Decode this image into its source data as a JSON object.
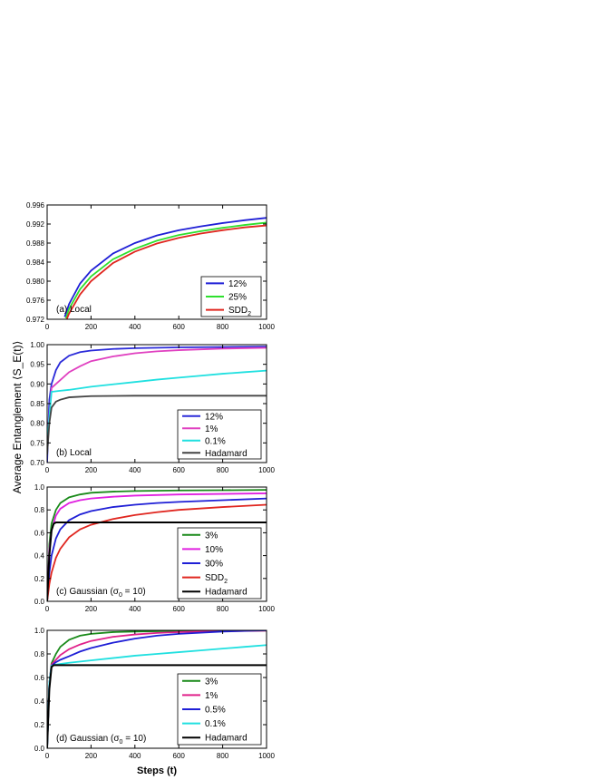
{
  "figure": {
    "ylabel": "Average Entanglement ⟨S_E(t)⟩",
    "xlabel": "Steps (t)"
  },
  "chart_data": [
    {
      "type": "line",
      "annotation": "(a) Local",
      "xlim": [
        0,
        1000
      ],
      "ylim": [
        0.972,
        0.996
      ],
      "yticks": [
        "0.972",
        "0.976",
        "0.980",
        "0.984",
        "0.988",
        "0.992",
        "0.996"
      ],
      "xticks": [
        "0",
        "200",
        "400",
        "600",
        "800",
        "1000"
      ],
      "legend_position": "bottom-right",
      "series": [
        {
          "name": "12%",
          "color": "#1f1fd6",
          "x": [
            80,
            100,
            150,
            200,
            300,
            400,
            500,
            600,
            700,
            800,
            900,
            1000
          ],
          "y": [
            0.9725,
            0.9752,
            0.9795,
            0.9822,
            0.9858,
            0.988,
            0.9896,
            0.9907,
            0.9915,
            0.9922,
            0.9928,
            0.9933
          ]
        },
        {
          "name": "25%",
          "color": "#2ee02e",
          "x": [
            85,
            100,
            150,
            200,
            300,
            400,
            500,
            600,
            700,
            800,
            900,
            1000
          ],
          "y": [
            0.9722,
            0.9742,
            0.9783,
            0.981,
            0.9846,
            0.9868,
            0.9885,
            0.9897,
            0.9905,
            0.9912,
            0.9918,
            0.9923
          ]
        },
        {
          "name": "SDD2",
          "color": "#e0261f",
          "x": [
            90,
            100,
            150,
            200,
            300,
            400,
            500,
            600,
            700,
            800,
            900,
            1000
          ],
          "y": [
            0.9721,
            0.9732,
            0.9772,
            0.98,
            0.9838,
            0.9862,
            0.9879,
            0.9891,
            0.99,
            0.9907,
            0.9913,
            0.9917
          ]
        }
      ]
    },
    {
      "type": "line",
      "annotation": "(b) Local",
      "xlim": [
        0,
        1000
      ],
      "ylim": [
        0.7,
        1.0
      ],
      "yticks": [
        "0.70",
        "0.75",
        "0.80",
        "0.85",
        "0.90",
        "0.95",
        "1.00"
      ],
      "xticks": [
        "0",
        "200",
        "400",
        "600",
        "800",
        "1000"
      ],
      "legend_position": "bottom-right",
      "series": [
        {
          "name": "12%",
          "color": "#2b2bd9",
          "x": [
            0,
            10,
            20,
            40,
            60,
            100,
            150,
            200,
            300,
            400,
            600,
            800,
            1000
          ],
          "y": [
            0.7,
            0.86,
            0.9,
            0.935,
            0.955,
            0.972,
            0.981,
            0.985,
            0.989,
            0.991,
            0.993,
            0.994,
            0.995
          ]
        },
        {
          "name": "1%",
          "color": "#e040c0",
          "x": [
            0,
            20,
            50,
            100,
            150,
            200,
            300,
            400,
            500,
            600,
            800,
            1000
          ],
          "y": [
            0.75,
            0.89,
            0.905,
            0.93,
            0.945,
            0.958,
            0.97,
            0.978,
            0.983,
            0.986,
            0.99,
            0.992
          ]
        },
        {
          "name": "0.1%",
          "color": "#20e0e0",
          "x": [
            0,
            20,
            50,
            100,
            150,
            200,
            300,
            400,
            500,
            600,
            700,
            800,
            900,
            1000
          ],
          "y": [
            0.75,
            0.88,
            0.882,
            0.885,
            0.889,
            0.893,
            0.899,
            0.905,
            0.911,
            0.916,
            0.921,
            0.926,
            0.93,
            0.934
          ]
        },
        {
          "name": "Hadamard",
          "color": "#444444",
          "x": [
            0,
            10,
            20,
            40,
            60,
            100,
            200,
            400,
            600,
            800,
            1000
          ],
          "y": [
            0.72,
            0.8,
            0.84,
            0.855,
            0.86,
            0.866,
            0.869,
            0.87,
            0.87,
            0.87,
            0.87
          ]
        }
      ]
    },
    {
      "type": "line",
      "annotation": "(c) Gaussian (σ0 = 10)",
      "xlim": [
        0,
        1000
      ],
      "ylim": [
        0.0,
        1.0
      ],
      "yticks": [
        "0.0",
        "0.2",
        "0.4",
        "0.6",
        "0.8",
        "1.0"
      ],
      "xticks": [
        "0",
        "200",
        "400",
        "600",
        "800",
        "1000"
      ],
      "legend_position": "bottom-right",
      "series": [
        {
          "name": "3%",
          "color": "#1a8a1a",
          "x": [
            0,
            10,
            20,
            40,
            60,
            100,
            150,
            200,
            300,
            400,
            600,
            800,
            1000
          ],
          "y": [
            0.0,
            0.5,
            0.68,
            0.8,
            0.86,
            0.91,
            0.935,
            0.95,
            0.96,
            0.965,
            0.97,
            0.972,
            0.975
          ]
        },
        {
          "name": "10%",
          "color": "#e020e0",
          "x": [
            0,
            10,
            20,
            40,
            60,
            100,
            150,
            200,
            300,
            400,
            600,
            800,
            1000
          ],
          "y": [
            0.0,
            0.45,
            0.62,
            0.75,
            0.81,
            0.86,
            0.885,
            0.9,
            0.915,
            0.925,
            0.935,
            0.94,
            0.945
          ]
        },
        {
          "name": "30%",
          "color": "#1f1fd6",
          "x": [
            0,
            10,
            20,
            40,
            60,
            100,
            150,
            200,
            300,
            400,
            500,
            600,
            800,
            1000
          ],
          "y": [
            0.0,
            0.25,
            0.4,
            0.55,
            0.63,
            0.71,
            0.76,
            0.79,
            0.825,
            0.845,
            0.86,
            0.87,
            0.885,
            0.9
          ]
        },
        {
          "name": "SDD2",
          "color": "#e0261f",
          "x": [
            0,
            10,
            20,
            40,
            60,
            100,
            150,
            200,
            300,
            400,
            500,
            600,
            800,
            1000
          ],
          "y": [
            0.0,
            0.15,
            0.25,
            0.38,
            0.46,
            0.56,
            0.63,
            0.67,
            0.72,
            0.755,
            0.78,
            0.8,
            0.825,
            0.845
          ]
        },
        {
          "name": "Hadamard",
          "color": "#000000",
          "x": [
            0,
            10,
            20,
            30,
            40,
            1000
          ],
          "y": [
            0.0,
            0.4,
            0.62,
            0.68,
            0.69,
            0.69
          ]
        }
      ]
    },
    {
      "type": "line",
      "annotation": "(d) Gaussian (σ0 = 10)",
      "xlim": [
        0,
        1000
      ],
      "ylim": [
        0.0,
        1.0
      ],
      "yticks": [
        "0.0",
        "0.2",
        "0.4",
        "0.6",
        "0.8",
        "1.0"
      ],
      "xticks": [
        "0",
        "200",
        "400",
        "600",
        "800",
        "1000"
      ],
      "legend_position": "bottom-right",
      "series": [
        {
          "name": "3%",
          "color": "#1a8a1a",
          "x": [
            0,
            10,
            20,
            40,
            60,
            100,
            150,
            200,
            300,
            400,
            600,
            800,
            1000
          ],
          "y": [
            0.0,
            0.55,
            0.72,
            0.8,
            0.86,
            0.92,
            0.955,
            0.97,
            0.985,
            0.99,
            0.995,
            0.997,
            0.998
          ]
        },
        {
          "name": "1%",
          "color": "#e0208a",
          "x": [
            0,
            10,
            20,
            40,
            60,
            100,
            150,
            200,
            300,
            400,
            500,
            600,
            800,
            1000
          ],
          "y": [
            0.0,
            0.55,
            0.71,
            0.75,
            0.79,
            0.84,
            0.88,
            0.91,
            0.945,
            0.965,
            0.978,
            0.985,
            0.993,
            0.997
          ]
        },
        {
          "name": "0.5%",
          "color": "#1f1fd6",
          "x": [
            0,
            10,
            20,
            40,
            60,
            100,
            150,
            200,
            300,
            400,
            500,
            600,
            700,
            800,
            900,
            1000
          ],
          "y": [
            0.0,
            0.55,
            0.7,
            0.73,
            0.75,
            0.78,
            0.82,
            0.85,
            0.895,
            0.93,
            0.955,
            0.97,
            0.98,
            0.99,
            0.995,
            1.0
          ]
        },
        {
          "name": "0.1%",
          "color": "#20e0e0",
          "x": [
            0,
            10,
            20,
            40,
            60,
            100,
            200,
            300,
            400,
            500,
            600,
            700,
            800,
            900,
            1000
          ],
          "y": [
            0.0,
            0.55,
            0.7,
            0.71,
            0.715,
            0.725,
            0.745,
            0.765,
            0.785,
            0.8,
            0.815,
            0.83,
            0.845,
            0.86,
            0.875
          ]
        },
        {
          "name": "Hadamard",
          "color": "#000000",
          "x": [
            0,
            10,
            20,
            30,
            1000
          ],
          "y": [
            0.0,
            0.5,
            0.69,
            0.705,
            0.705
          ]
        }
      ]
    }
  ]
}
